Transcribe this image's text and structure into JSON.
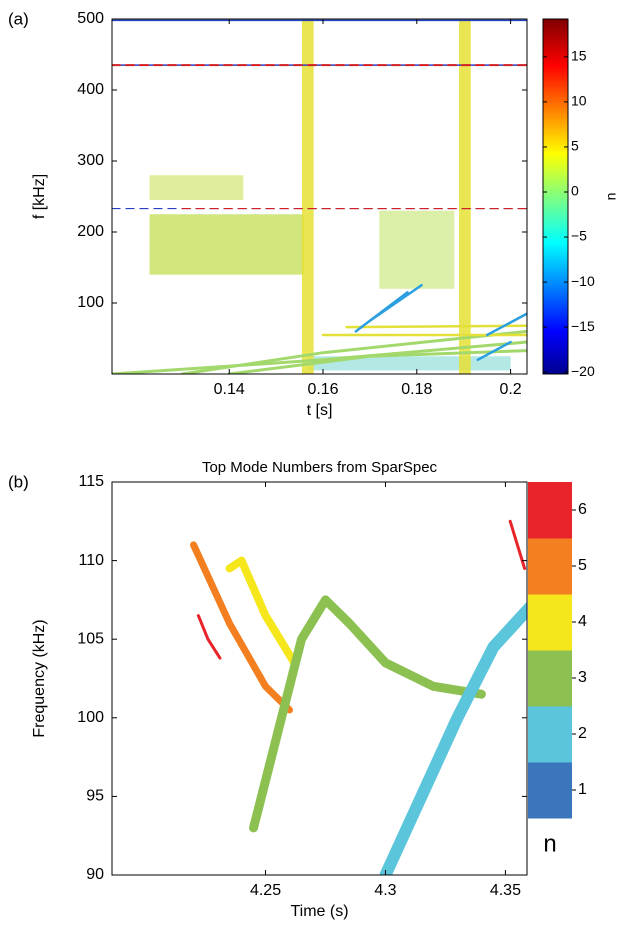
{
  "chart_data": [
    {
      "type": "spectrogram",
      "panel_label": "(a)",
      "x_label": "t [s]",
      "y_label": "f [kHz]",
      "xlim": [
        0.115,
        0.2035
      ],
      "xticks": [
        0.14,
        0.16,
        0.18,
        0.2
      ],
      "ylim": [
        0,
        500
      ],
      "yticks": [
        100,
        200,
        300,
        400,
        500
      ],
      "colorbar": {
        "label": "n",
        "lim": [
          -20.2,
          19.2
        ],
        "ticks": [
          {
            "value": -20,
            "label": "−20"
          },
          {
            "value": -15,
            "label": "−15"
          },
          {
            "value": -10,
            "label": "−10"
          },
          {
            "value": -5,
            "label": "−5"
          },
          0,
          5,
          10,
          15
        ]
      },
      "regions": [
        {
          "color": "#c9e266",
          "x": [
            0.123,
            0.156
          ],
          "y": [
            140,
            225
          ]
        },
        {
          "color": "#dbeb8a",
          "x": [
            0.123,
            0.143
          ],
          "y": [
            245,
            280
          ]
        },
        {
          "color": "#d6ec9a",
          "x": [
            0.172,
            0.188
          ],
          "y": [
            120,
            230
          ]
        },
        {
          "color": "#a6e4e0",
          "x": [
            0.157,
            0.2
          ],
          "y": [
            5,
            25
          ]
        },
        {
          "color": "#e6e034",
          "x": [
            0.1555,
            0.158
          ],
          "y": [
            0,
            500
          ]
        },
        {
          "color": "#e6e034",
          "x": [
            0.189,
            0.1915
          ],
          "y": [
            0,
            500
          ]
        }
      ],
      "series": [
        {
          "color": "#1f3fbf",
          "width": 1.5,
          "dashed": false,
          "x": [
            0.115,
            0.2035
          ],
          "values": [
            498,
            498
          ]
        },
        {
          "color": "#2a3ec4",
          "width": 1.5,
          "dashed": false,
          "x": [
            0.115,
            0.2035
          ],
          "values": [
            435,
            435
          ]
        },
        {
          "color": "#d42020",
          "width": 2,
          "dashed": true,
          "x": [
            0.115,
            0.2035
          ],
          "values": [
            435,
            435
          ]
        },
        {
          "color": "#2a3ec4",
          "width": 1.2,
          "dashed": true,
          "x": [
            0.115,
            0.2035
          ],
          "values": [
            233,
            233
          ]
        },
        {
          "color": "#d42020",
          "width": 1.2,
          "dashed": true,
          "x": [
            0.13,
            0.2035
          ],
          "values": [
            233,
            233
          ]
        },
        {
          "color": "#a3d96c",
          "width": 3,
          "dashed": false,
          "x": [
            0.115,
            0.16,
            0.2035
          ],
          "values": [
            0,
            20,
            45
          ]
        },
        {
          "color": "#a3d96c",
          "width": 3,
          "dashed": false,
          "x": [
            0.13,
            0.16,
            0.2035
          ],
          "values": [
            0,
            30,
            60
          ]
        },
        {
          "color": "#a3d96c",
          "width": 3,
          "dashed": false,
          "x": [
            0.14,
            0.17,
            0.2035
          ],
          "values": [
            0,
            25,
            33
          ]
        },
        {
          "color": "#e3e03a",
          "width": 2.5,
          "dashed": false,
          "x": [
            0.16,
            0.2035
          ],
          "values": [
            55,
            55
          ]
        },
        {
          "color": "#e3e03a",
          "width": 2.5,
          "dashed": false,
          "x": [
            0.165,
            0.2035
          ],
          "values": [
            66,
            68
          ]
        },
        {
          "color": "#2b9fe0",
          "width": 2.5,
          "dashed": false,
          "x": [
            0.167,
            0.178
          ],
          "values": [
            60,
            115
          ]
        },
        {
          "color": "#2b9fe0",
          "width": 2.5,
          "dashed": false,
          "x": [
            0.17,
            0.181
          ],
          "values": [
            75,
            125
          ]
        },
        {
          "color": "#2b9fe0",
          "width": 2.5,
          "dashed": false,
          "x": [
            0.195,
            0.2035
          ],
          "values": [
            55,
            85
          ]
        },
        {
          "color": "#2b9fe0",
          "width": 2.5,
          "dashed": false,
          "x": [
            0.193,
            0.2
          ],
          "values": [
            20,
            45
          ]
        }
      ]
    },
    {
      "type": "spectrogram",
      "panel_label": "(b)",
      "title": "Top Mode Numbers from SparSpec",
      "x_label": "Time (s)",
      "y_label": "Frequency (kHz)",
      "xlim": [
        4.186,
        4.359
      ],
      "xticks": [
        4.25,
        4.3,
        4.35
      ],
      "ylim": [
        90,
        115
      ],
      "yticks": [
        90,
        95,
        100,
        105,
        110,
        115
      ],
      "colorbar": {
        "label": "n",
        "ticks": [
          1,
          2,
          3,
          4,
          5,
          6
        ],
        "colors": [
          "#3b75bb",
          "#5bc5dc",
          "#8cc152",
          "#f5e71c",
          "#f47f20",
          "#e8242a"
        ]
      },
      "series": [
        {
          "mode": 5,
          "width": 7,
          "x": [
            4.22,
            4.235,
            4.25,
            4.26
          ],
          "values": [
            111,
            106,
            102,
            100.5
          ]
        },
        {
          "mode": 4,
          "width": 8,
          "x": [
            4.235,
            4.24,
            4.25,
            4.262
          ],
          "values": [
            109.5,
            110,
            106.5,
            103.5
          ]
        },
        {
          "mode": 3,
          "width": 9,
          "x": [
            4.245,
            4.255,
            4.265,
            4.275,
            4.285,
            4.3,
            4.32,
            4.34
          ],
          "values": [
            93,
            99,
            105,
            107.5,
            106,
            103.5,
            102,
            101.5
          ]
        },
        {
          "mode": 2,
          "width": 12,
          "x": [
            4.3,
            4.315,
            4.33,
            4.345,
            4.36
          ],
          "values": [
            90,
            95,
            100,
            104.5,
            107
          ]
        },
        {
          "mode": 6,
          "width": 3,
          "x": [
            4.222,
            4.226,
            4.231
          ],
          "values": [
            106.5,
            105,
            103.8
          ]
        },
        {
          "mode": 6,
          "width": 3,
          "x": [
            4.352,
            4.355,
            4.358
          ],
          "values": [
            112.5,
            111,
            109.5
          ]
        }
      ]
    }
  ]
}
